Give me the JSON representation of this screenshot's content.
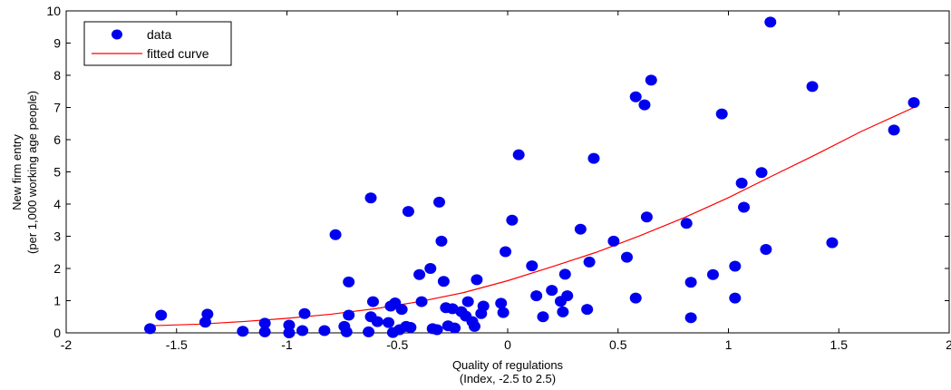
{
  "chart_data": {
    "type": "scatter",
    "title": "",
    "xlabel": [
      "Quality of regulations",
      "(Index, -2.5 to 2.5)"
    ],
    "ylabel": [
      "New firm entry",
      "(per 1,000 working age people)"
    ],
    "xlim": [
      -2,
      2
    ],
    "ylim": [
      0,
      10
    ],
    "xticks": [
      -2,
      -1.5,
      -1,
      -0.5,
      0,
      0.5,
      1,
      1.5,
      2
    ],
    "yticks": [
      0,
      1,
      2,
      3,
      4,
      5,
      6,
      7,
      8,
      9,
      10
    ],
    "xtick_labels": [
      "-2",
      "-1.5",
      "-1",
      "-0.5",
      "0",
      "0.5",
      "1",
      "1.5",
      "2"
    ],
    "ytick_labels": [
      "0",
      "1",
      "2",
      "3",
      "4",
      "5",
      "6",
      "7",
      "8",
      "9",
      "10"
    ],
    "grid": false,
    "legend_position": "top-left",
    "series": [
      {
        "name": "data",
        "kind": "scatter",
        "color": "#0000ee",
        "points": [
          [
            -1.62,
            0.13
          ],
          [
            -1.57,
            0.55
          ],
          [
            -1.37,
            0.33
          ],
          [
            -1.36,
            0.58
          ],
          [
            -1.2,
            0.05
          ],
          [
            -1.1,
            0.3
          ],
          [
            -1.1,
            0.03
          ],
          [
            -0.99,
            0.24
          ],
          [
            -0.99,
            0.0
          ],
          [
            -0.93,
            0.07
          ],
          [
            -0.92,
            0.6
          ],
          [
            -0.83,
            0.07
          ],
          [
            -0.78,
            3.05
          ],
          [
            -0.74,
            0.2
          ],
          [
            -0.73,
            0.03
          ],
          [
            -0.72,
            1.58
          ],
          [
            -0.72,
            0.55
          ],
          [
            -0.63,
            0.03
          ],
          [
            -0.62,
            4.19
          ],
          [
            -0.62,
            0.5
          ],
          [
            -0.61,
            0.97
          ],
          [
            -0.59,
            0.35
          ],
          [
            -0.54,
            0.32
          ],
          [
            -0.53,
            0.83
          ],
          [
            -0.52,
            0.01
          ],
          [
            -0.51,
            0.93
          ],
          [
            -0.49,
            0.1
          ],
          [
            -0.48,
            0.73
          ],
          [
            -0.46,
            0.2
          ],
          [
            -0.45,
            3.77
          ],
          [
            -0.44,
            0.17
          ],
          [
            -0.4,
            1.81
          ],
          [
            -0.39,
            0.97
          ],
          [
            -0.35,
            2.0
          ],
          [
            -0.34,
            0.13
          ],
          [
            -0.32,
            0.1
          ],
          [
            -0.31,
            4.06
          ],
          [
            -0.3,
            2.85
          ],
          [
            -0.29,
            1.6
          ],
          [
            -0.28,
            0.78
          ],
          [
            -0.27,
            0.22
          ],
          [
            -0.25,
            0.75
          ],
          [
            -0.24,
            0.15
          ],
          [
            -0.21,
            0.66
          ],
          [
            -0.19,
            0.52
          ],
          [
            -0.18,
            0.97
          ],
          [
            -0.16,
            0.35
          ],
          [
            -0.15,
            0.2
          ],
          [
            -0.14,
            1.65
          ],
          [
            -0.12,
            0.6
          ],
          [
            -0.11,
            0.83
          ],
          [
            -0.03,
            0.92
          ],
          [
            -0.02,
            0.63
          ],
          [
            -0.01,
            2.52
          ],
          [
            0.02,
            3.5
          ],
          [
            0.05,
            5.53
          ],
          [
            0.11,
            2.08
          ],
          [
            0.13,
            1.15
          ],
          [
            0.16,
            0.5
          ],
          [
            0.2,
            1.32
          ],
          [
            0.24,
            0.98
          ],
          [
            0.25,
            0.65
          ],
          [
            0.26,
            1.82
          ],
          [
            0.27,
            1.15
          ],
          [
            0.33,
            3.22
          ],
          [
            0.36,
            0.73
          ],
          [
            0.37,
            2.2
          ],
          [
            0.39,
            5.42
          ],
          [
            0.48,
            2.85
          ],
          [
            0.54,
            2.35
          ],
          [
            0.58,
            1.08
          ],
          [
            0.58,
            7.33
          ],
          [
            0.62,
            7.08
          ],
          [
            0.63,
            3.6
          ],
          [
            0.65,
            7.85
          ],
          [
            0.81,
            3.4
          ],
          [
            0.83,
            1.57
          ],
          [
            0.83,
            0.47
          ],
          [
            0.93,
            1.81
          ],
          [
            0.97,
            6.8
          ],
          [
            1.03,
            2.07
          ],
          [
            1.03,
            1.08
          ],
          [
            1.06,
            4.65
          ],
          [
            1.07,
            3.9
          ],
          [
            1.15,
            4.98
          ],
          [
            1.17,
            2.59
          ],
          [
            1.19,
            9.65
          ],
          [
            1.38,
            7.65
          ],
          [
            1.47,
            2.8
          ],
          [
            1.75,
            6.3
          ],
          [
            1.84,
            7.15
          ]
        ]
      },
      {
        "name": "fitted curve",
        "kind": "line",
        "color": "#ff0000",
        "points": [
          [
            -1.62,
            0.22
          ],
          [
            -1.4,
            0.27
          ],
          [
            -1.2,
            0.35
          ],
          [
            -1.0,
            0.45
          ],
          [
            -0.8,
            0.58
          ],
          [
            -0.6,
            0.75
          ],
          [
            -0.4,
            0.97
          ],
          [
            -0.2,
            1.25
          ],
          [
            0.0,
            1.62
          ],
          [
            0.2,
            2.05
          ],
          [
            0.4,
            2.5
          ],
          [
            0.6,
            3.02
          ],
          [
            0.8,
            3.58
          ],
          [
            1.0,
            4.2
          ],
          [
            1.2,
            4.88
          ],
          [
            1.4,
            5.55
          ],
          [
            1.6,
            6.25
          ],
          [
            1.84,
            7.0
          ]
        ]
      }
    ]
  }
}
